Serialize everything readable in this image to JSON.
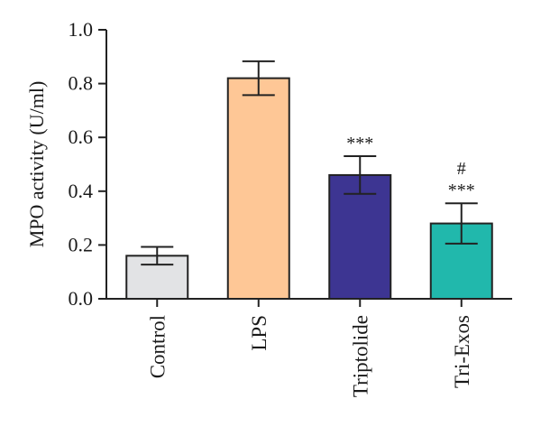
{
  "chart_data": {
    "type": "bar",
    "title": "",
    "xlabel": "",
    "ylabel": "MPO activity (U/ml)",
    "ylim": [
      0,
      1.0
    ],
    "yticks": [
      0.0,
      0.2,
      0.4,
      0.6,
      0.8,
      1.0
    ],
    "ytick_labels": [
      "0.0",
      "0.2",
      "0.4",
      "0.6",
      "0.8",
      "1.0"
    ],
    "categories": [
      "Control",
      "LPS",
      "Triptolide",
      "Tri-Exos"
    ],
    "values": [
      0.16,
      0.82,
      0.46,
      0.28
    ],
    "errors": [
      0.033,
      0.063,
      0.07,
      0.075
    ],
    "colors": [
      "#e2e3e5",
      "#fec796",
      "#3d3592",
      "#21b8ac"
    ],
    "annotations": [
      {
        "category": "Triptolide",
        "lines": [
          "***"
        ]
      },
      {
        "category": "Tri-Exos",
        "lines": [
          "#",
          "***"
        ]
      }
    ],
    "grid": false,
    "legend": "none"
  }
}
